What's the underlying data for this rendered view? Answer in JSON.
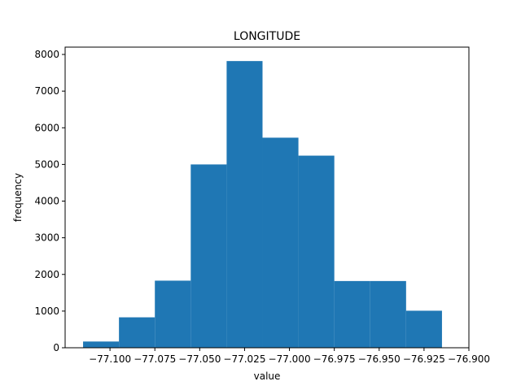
{
  "chart_data": {
    "type": "bar",
    "title": "LONGITUDE",
    "xlabel": "value",
    "ylabel": "frequency",
    "bin_edges": [
      -77.115,
      -77.095,
      -77.075,
      -77.055,
      -77.035,
      -77.015,
      -76.995,
      -76.975,
      -76.955,
      -76.935,
      -76.915
    ],
    "values": [
      170,
      830,
      1830,
      5000,
      7820,
      5730,
      5240,
      1820,
      1820,
      1010
    ],
    "xlim": [
      -77.125,
      -76.9
    ],
    "ylim": [
      0,
      8200
    ],
    "x_ticks": [
      -77.1,
      -77.075,
      -77.05,
      -77.025,
      -77.0,
      -76.975,
      -76.95,
      -76.925,
      -76.9
    ],
    "x_tick_labels": [
      "−77.100",
      "−77.075",
      "−77.050",
      "−77.025",
      "−77.000",
      "−76.975",
      "−76.950",
      "−76.925",
      "−76.900"
    ],
    "y_ticks": [
      0,
      1000,
      2000,
      3000,
      4000,
      5000,
      6000,
      7000,
      8000
    ],
    "y_tick_labels": [
      "0",
      "1000",
      "2000",
      "3000",
      "4000",
      "5000",
      "6000",
      "7000",
      "8000"
    ],
    "bar_color": "#1f77b4",
    "grid": false
  }
}
